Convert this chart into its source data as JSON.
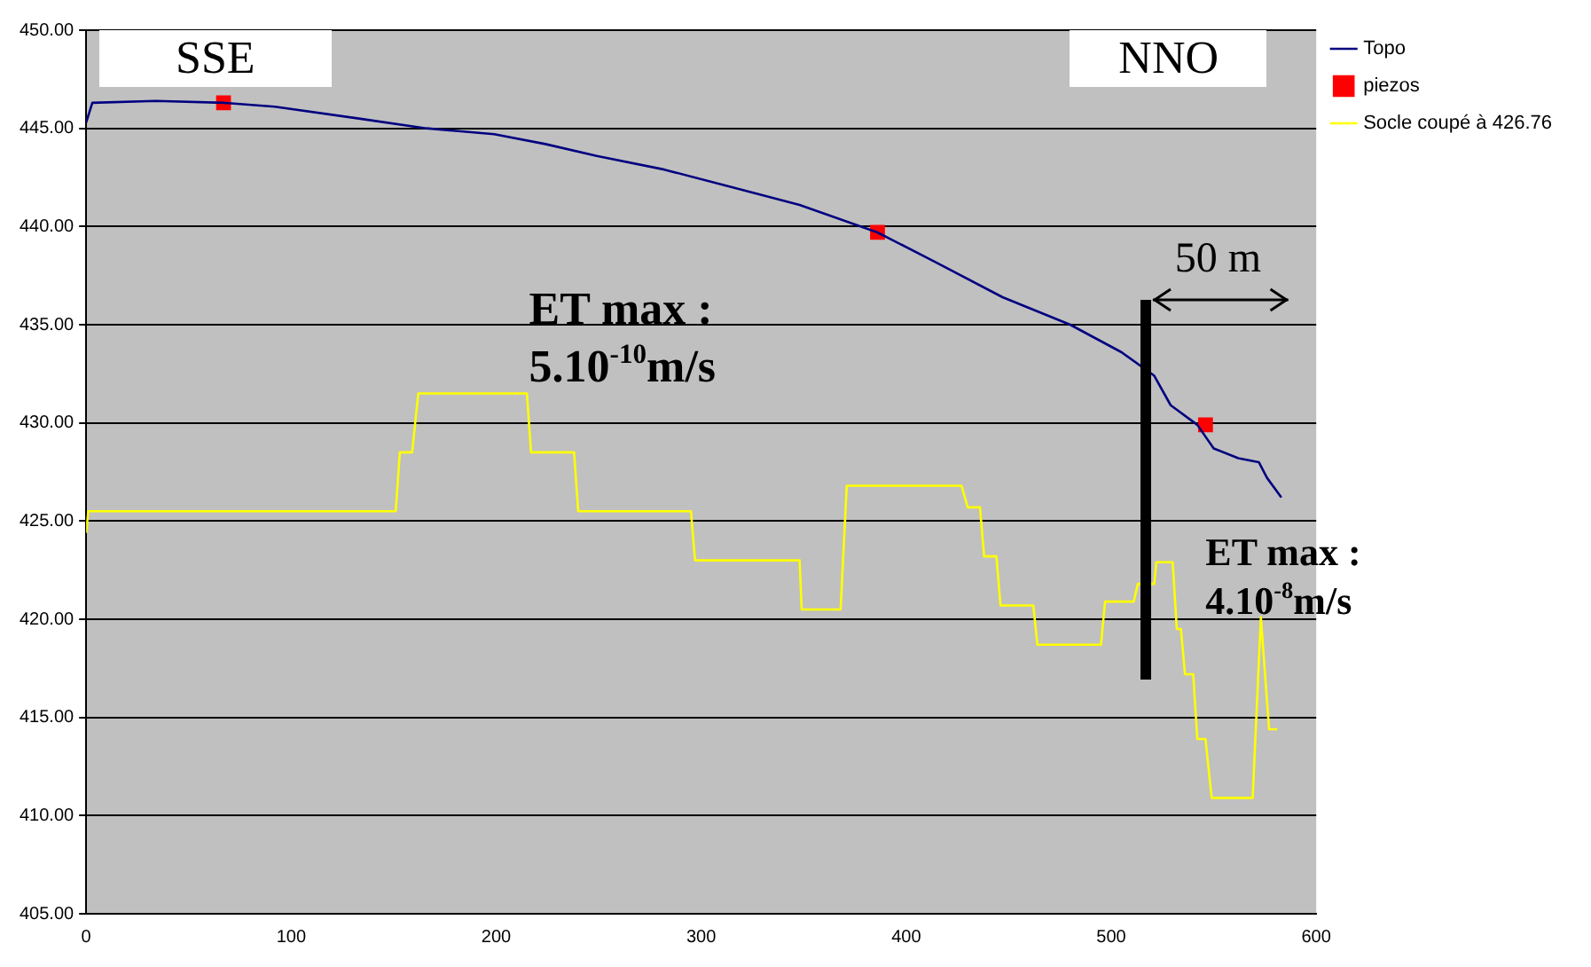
{
  "chart_data": {
    "type": "line",
    "xlim": [
      0,
      600
    ],
    "xticks": [
      0,
      100,
      200,
      300,
      400,
      500,
      600
    ],
    "ylim": [
      405,
      450
    ],
    "yticks": [
      {
        "value": 405,
        "label": "405.00"
      },
      {
        "value": 410,
        "label": "410.00"
      },
      {
        "value": 415,
        "label": "415.00"
      },
      {
        "value": 420,
        "label": "420.00"
      },
      {
        "value": 425,
        "label": "425.00"
      },
      {
        "value": 430,
        "label": "430.00"
      },
      {
        "value": 435,
        "label": "435.00"
      },
      {
        "value": 440,
        "label": "440.00"
      },
      {
        "value": 445,
        "label": "445.00"
      },
      {
        "value": 450,
        "label": "450.00"
      }
    ],
    "grid": "y",
    "legend": "right",
    "series": [
      {
        "name": "Topo",
        "color": "#000080",
        "marker": "none",
        "x": [
          0,
          3,
          34,
          67,
          92,
          133,
          166,
          199,
          224,
          249,
          282,
          315,
          348,
          386,
          414,
          447,
          480,
          505,
          521,
          529,
          542,
          550,
          562,
          572,
          576,
          583
        ],
        "values": [
          445.3,
          446.3,
          446.4,
          446.3,
          446.1,
          445.5,
          445.0,
          444.7,
          444.2,
          443.6,
          442.9,
          442.0,
          441.1,
          439.7,
          438.2,
          436.4,
          435.0,
          433.6,
          432.4,
          430.9,
          429.9,
          428.7,
          428.2,
          428.0,
          427.2,
          426.2
        ]
      },
      {
        "name": "piezos",
        "type": "scatter",
        "color": "#ff0000",
        "marker": "square",
        "x": [
          67,
          386,
          546
        ],
        "values": [
          446.3,
          439.7,
          429.9
        ]
      },
      {
        "name": "Socle coupé à 426.76",
        "color": "#ffff00",
        "marker": "none",
        "x": [
          0,
          1,
          151,
          153,
          159,
          162,
          215,
          217,
          238,
          240,
          295,
          297,
          348,
          349,
          368,
          371,
          427,
          430,
          436,
          438,
          444,
          446,
          462,
          464,
          495,
          497,
          511,
          513,
          521,
          522,
          530,
          532,
          534,
          536,
          540,
          542,
          546,
          549,
          569,
          573,
          577,
          581
        ],
        "values": [
          424.4,
          425.5,
          425.5,
          428.5,
          428.5,
          431.5,
          431.5,
          428.5,
          428.5,
          425.5,
          425.5,
          423,
          423,
          420.5,
          420.5,
          426.8,
          426.8,
          425.7,
          425.7,
          423.2,
          423.2,
          420.7,
          420.7,
          418.7,
          418.7,
          420.9,
          420.9,
          421.8,
          421.8,
          422.9,
          422.9,
          419.5,
          419.5,
          417.2,
          417.2,
          413.9,
          413.9,
          410.9,
          410.9,
          420.1,
          414.4,
          414.4
        ]
      }
    ],
    "annotations": [
      "SSE",
      "NNO",
      "ET max :\n5.10$^{-10}$m/s",
      "ET max :\n4.10$^{-8}$m/s",
      "50 m"
    ]
  }
}
